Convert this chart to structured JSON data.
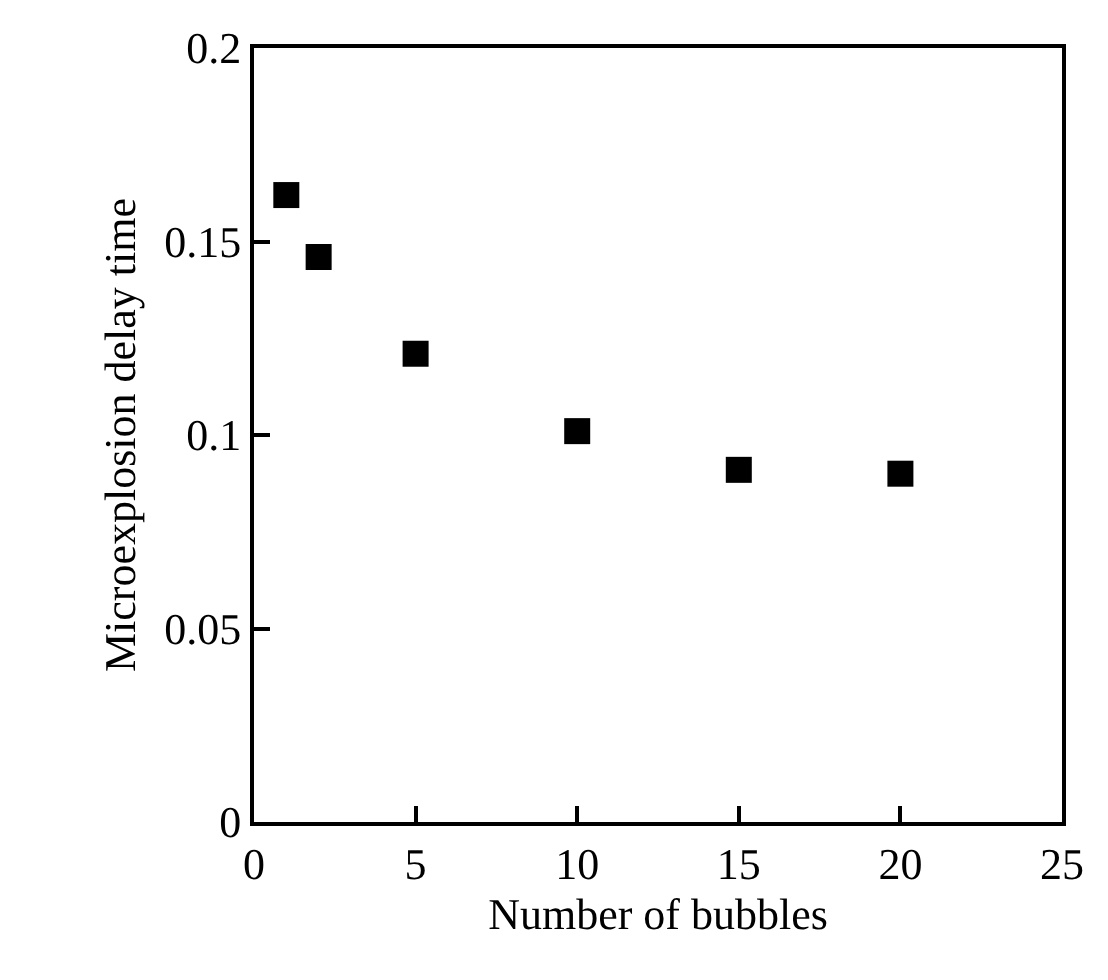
{
  "chart_data": {
    "type": "scatter",
    "xlabel": "Number of bubbles",
    "ylabel": "Microexplosion delay time",
    "x": [
      1,
      2,
      5,
      10,
      15,
      20
    ],
    "series": [
      {
        "color": "#000000",
        "values": [
          0.162,
          0.146,
          0.121,
          0.101,
          0.091,
          0.09
        ]
      }
    ],
    "marker": "square",
    "xlim": [
      0,
      25
    ],
    "xticks": [
      0,
      5,
      10,
      15,
      20,
      25
    ],
    "ylim": [
      0,
      0.2
    ],
    "yticks": [
      0,
      {
        "value": 0.05,
        "label": "0.05"
      },
      {
        "value": 0.1,
        "label": "0.1"
      },
      {
        "value": 0.15,
        "label": "0.15"
      },
      {
        "value": 0.2,
        "label": "0.2"
      }
    ]
  }
}
